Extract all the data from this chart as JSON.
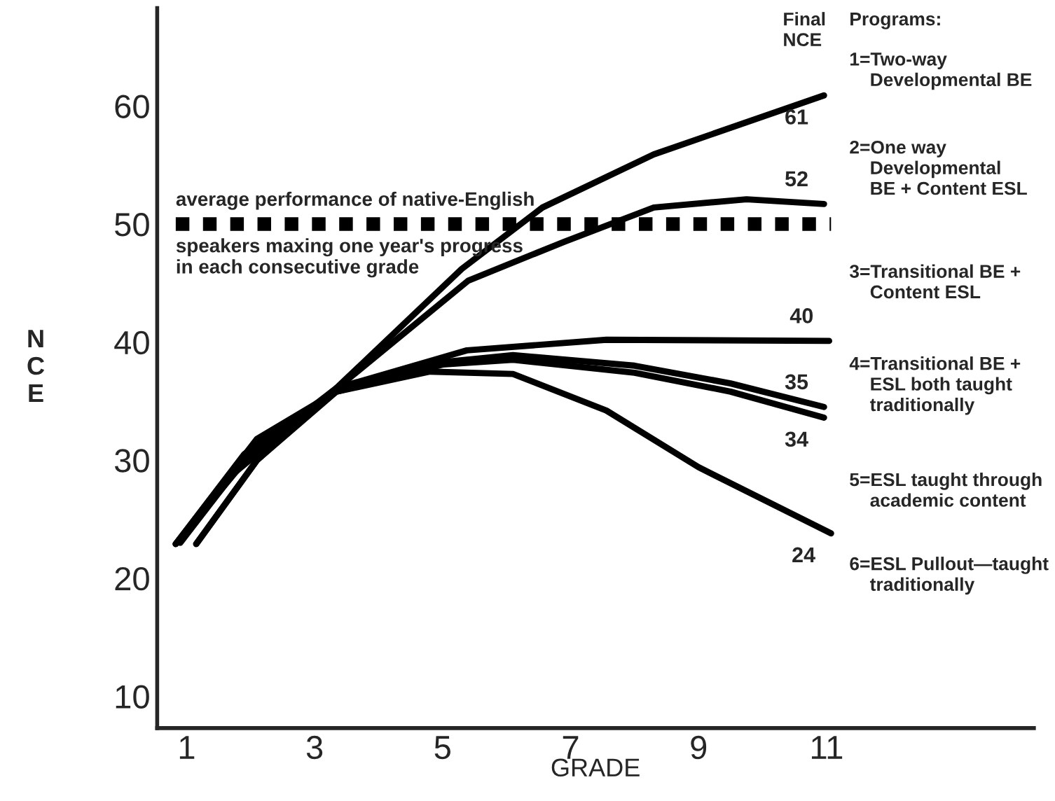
{
  "chart_data": {
    "type": "line",
    "xlabel": "GRADE",
    "ylabel": "NCE",
    "xlim": [
      0.54,
      14.24
    ],
    "ylim": [
      7.3,
      68.3
    ],
    "xticks": [
      1,
      3,
      5,
      7,
      9,
      11
    ],
    "yticks": [
      10,
      20,
      30,
      40,
      50,
      60
    ],
    "grid": false,
    "legend": false,
    "marker": "none",
    "line_style": "solid",
    "series": [
      {
        "color": "#000000",
        "x": [
          0.83,
          2.0,
          3.34,
          5.3,
          6.56,
          8.3,
          10.96
        ],
        "values": [
          22.9,
          30.5,
          36.1,
          46.2,
          51.4,
          55.9,
          60.9
        ]
      },
      {
        "color": "#000000",
        "x": [
          1.15,
          2.1,
          3.33,
          5.4,
          6.9,
          8.3,
          9.75,
          10.96
        ],
        "values": [
          22.9,
          30.0,
          36.0,
          45.2,
          48.5,
          51.4,
          52.1,
          51.7
        ]
      },
      {
        "color": "#000000",
        "x": [
          0.9,
          1.74,
          3.34,
          5.38,
          7.56,
          11.04
        ],
        "values": [
          23.0,
          28.9,
          36.1,
          39.3,
          40.2,
          40.1
        ]
      },
      {
        "color": "#000000",
        "x": [
          0.83,
          1.9,
          3.34,
          5.0,
          6.1,
          8.0,
          9.5,
          10.96
        ],
        "values": [
          22.9,
          30.5,
          35.9,
          38.3,
          38.9,
          38.0,
          36.5,
          34.5
        ]
      },
      {
        "color": "#000000",
        "x": [
          1.15,
          2.1,
          3.34,
          5.0,
          6.1,
          8.0,
          9.5,
          10.96
        ],
        "values": [
          22.9,
          30.0,
          35.8,
          38.1,
          38.5,
          37.4,
          35.8,
          33.6
        ]
      },
      {
        "color": "#000000",
        "x": [
          0.83,
          2.1,
          3.34,
          4.8,
          6.1,
          7.56,
          9.0,
          11.07
        ],
        "values": [
          22.9,
          31.8,
          35.8,
          37.5,
          37.3,
          34.2,
          29.4,
          23.8
        ]
      }
    ],
    "ref_lines": [
      {
        "axis": "y",
        "value": 50,
        "label": "average performance of native-English\nspeakers maxing one year's progress\nin each consecutive grade",
        "color": "#000000",
        "line_style": "dotted"
      }
    ],
    "annotations": [
      "Final\nNCE",
      "Programs:",
      "1=Two-way\n    Developmental BE",
      "2=One way\n    Developmental\n    BE + Content ESL",
      "3=Transitional BE +\n    Content ESL",
      "4=Transitional BE +\n    ESL both taught\n    traditionally",
      "5=ESL taught through\n    academic content",
      "6=ESL Pullout—taught\n    traditionally",
      {
        "text": "61",
        "x": 10.96,
        "y": 60.9
      },
      {
        "text": "52",
        "x": 10.96,
        "y": 51.7
      },
      {
        "text": "40",
        "x": 11.04,
        "y": 40.1
      },
      {
        "text": "35",
        "x": 10.96,
        "y": 34.5
      },
      {
        "text": "34",
        "x": 10.96,
        "y": 33.6
      },
      {
        "text": "24",
        "x": 11.07,
        "y": 23.8
      }
    ]
  }
}
